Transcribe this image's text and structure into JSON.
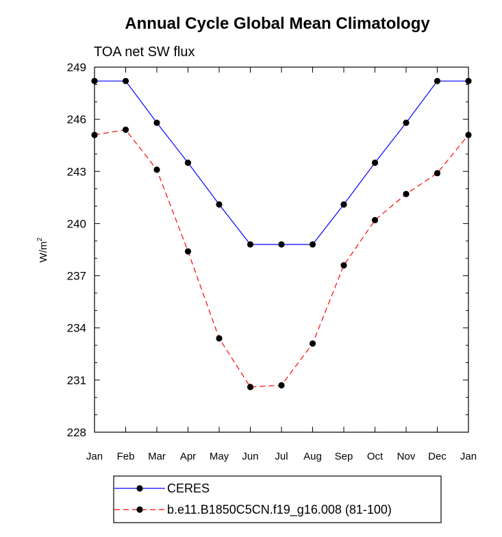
{
  "chart_data": {
    "type": "line",
    "title": "Annual Cycle Global Mean Climatology",
    "subtitle": "TOA net SW flux",
    "xlabel": "",
    "ylabel": "W/m",
    "ylabel_superscript": "2",
    "categories": [
      "Jan",
      "Feb",
      "Mar",
      "Apr",
      "May",
      "Jun",
      "Jul",
      "Aug",
      "Sep",
      "Oct",
      "Nov",
      "Dec",
      "Jan"
    ],
    "ylim": [
      228,
      249
    ],
    "yticks": [
      228,
      231,
      234,
      237,
      240,
      243,
      246,
      249
    ],
    "ytick_labels": [
      "228",
      "231",
      "234",
      "237",
      "240",
      "243",
      "246",
      "249"
    ],
    "grid": false,
    "legend_position": "bottom",
    "series": [
      {
        "name": "CERES",
        "color": "#0000ff",
        "line_style": "solid",
        "marker_color": "#000000",
        "values": [
          248.2,
          248.2,
          245.8,
          243.5,
          241.1,
          238.8,
          238.8,
          238.8,
          241.1,
          243.5,
          245.8,
          248.2,
          248.2
        ]
      },
      {
        "name": "b.e11.B1850C5CN.f19_g16.008 (81-100)",
        "color": "#ff0000",
        "line_style": "dashed",
        "marker_color": "#000000",
        "values": [
          245.1,
          245.4,
          243.1,
          238.4,
          233.4,
          230.6,
          230.7,
          233.1,
          237.6,
          240.2,
          241.7,
          242.9,
          245.1
        ]
      }
    ]
  }
}
